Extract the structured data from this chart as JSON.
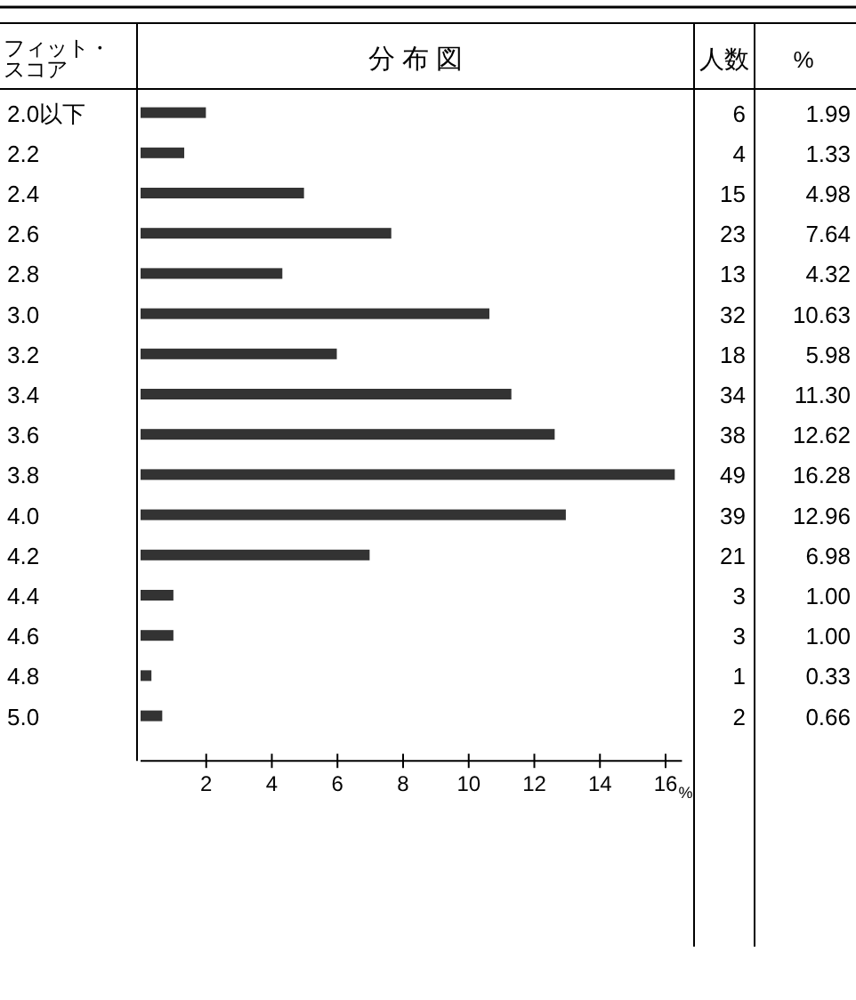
{
  "chart_data": [
    {
      "type": "bar",
      "orientation": "horizontal",
      "title": "分 布 図",
      "ylabel": "フィット・スコア",
      "xlabel": "%",
      "categories": [
        "2.0以下",
        "2.2",
        "2.4",
        "2.6",
        "2.8",
        "3.0",
        "3.2",
        "3.4",
        "3.6",
        "3.8",
        "4.0",
        "4.2",
        "4.4",
        "4.6",
        "4.8",
        "5.0"
      ],
      "series": [
        {
          "name": "%",
          "color": "#333333",
          "values": [
            1.99,
            1.33,
            4.98,
            7.64,
            4.32,
            10.63,
            5.98,
            11.3,
            12.62,
            16.28,
            12.96,
            6.98,
            1.0,
            1.0,
            0.33,
            0.66
          ],
          "value_labels": [
            "1.99",
            "1.33",
            "4.98",
            "7.64",
            "4.32",
            "10.63",
            "5.98",
            "11.30",
            "12.62",
            "16.28",
            "12.96",
            "6.98",
            "1.00",
            "1.00",
            "0.33",
            "0.66"
          ]
        }
      ],
      "xlim": [
        0,
        16.5
      ],
      "xticks": [
        2,
        4,
        6,
        8,
        10,
        12,
        14,
        16
      ],
      "grid": false,
      "legend": false
    },
    {
      "type": "other",
      "title": "人数",
      "annotations": [
        "6",
        "4",
        "15",
        "23",
        "13",
        "32",
        "18",
        "34",
        "38",
        "49",
        "39",
        "21",
        "3",
        "3",
        "1",
        "2"
      ]
    }
  ]
}
